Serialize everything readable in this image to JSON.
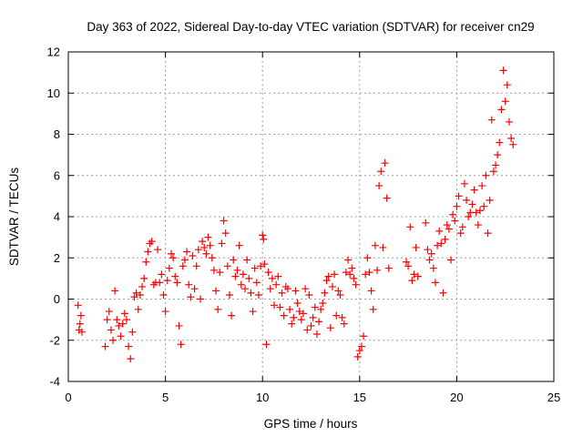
{
  "chart_data": {
    "type": "scatter",
    "title": "Day 363 of 2022, Sidereal Day-to-day VTEC variation (SDTVAR) for receiver cn29",
    "xlabel": "GPS time / hours",
    "ylabel": "SDTVAR / TECUs",
    "xlim": [
      0,
      25
    ],
    "ylim": [
      -4,
      12
    ],
    "xticks": [
      0,
      5,
      10,
      15,
      20,
      25
    ],
    "yticks": [
      -4,
      -2,
      0,
      2,
      4,
      6,
      8,
      10,
      12
    ],
    "grid": true,
    "marker": "+",
    "color": "#ff0000",
    "series": [
      {
        "name": "SDTVAR",
        "x": [
          0.5,
          0.55,
          0.6,
          0.65,
          0.7,
          1.9,
          2.0,
          2.1,
          2.2,
          2.3,
          2.4,
          2.5,
          2.6,
          2.7,
          2.8,
          2.9,
          3.0,
          3.1,
          3.2,
          3.3,
          3.4,
          3.5,
          3.6,
          3.7,
          3.8,
          3.9,
          4.0,
          4.1,
          4.2,
          4.3,
          4.4,
          4.5,
          4.6,
          4.7,
          4.8,
          4.9,
          5.0,
          5.1,
          5.2,
          5.3,
          5.4,
          5.5,
          5.6,
          5.7,
          5.8,
          5.9,
          6.0,
          6.1,
          6.2,
          6.3,
          6.4,
          6.5,
          6.6,
          6.7,
          6.8,
          6.9,
          7.0,
          7.1,
          7.2,
          7.3,
          7.4,
          7.5,
          7.6,
          7.7,
          7.8,
          7.9,
          8.0,
          8.1,
          8.2,
          8.3,
          8.4,
          8.5,
          8.6,
          8.7,
          8.8,
          8.9,
          9.0,
          9.1,
          9.2,
          9.3,
          9.4,
          9.5,
          9.6,
          9.7,
          9.8,
          9.9,
          10.0,
          10.05,
          10.1,
          10.2,
          10.3,
          10.4,
          10.5,
          10.6,
          10.7,
          10.8,
          10.9,
          11.0,
          11.1,
          11.2,
          11.3,
          11.4,
          11.5,
          11.6,
          11.7,
          11.8,
          11.9,
          12.0,
          12.1,
          12.2,
          12.3,
          12.4,
          12.5,
          12.6,
          12.7,
          12.8,
          12.9,
          13.0,
          13.1,
          13.2,
          13.3,
          13.4,
          13.5,
          13.6,
          13.7,
          13.8,
          13.9,
          14.0,
          14.1,
          14.2,
          14.3,
          14.4,
          14.5,
          14.6,
          14.7,
          14.8,
          14.9,
          15.0,
          15.1,
          15.2,
          15.3,
          15.4,
          15.5,
          15.6,
          15.7,
          15.8,
          15.9,
          16.0,
          16.1,
          16.2,
          16.3,
          16.4,
          16.5,
          17.4,
          17.5,
          17.6,
          17.7,
          17.8,
          17.9,
          18.0,
          18.4,
          18.5,
          18.6,
          18.7,
          18.8,
          18.9,
          19.0,
          19.1,
          19.2,
          19.3,
          19.4,
          19.5,
          19.6,
          19.7,
          19.8,
          19.9,
          20.0,
          20.1,
          20.2,
          20.3,
          20.4,
          20.5,
          20.6,
          20.7,
          20.8,
          20.9,
          21.0,
          21.1,
          21.2,
          21.3,
          21.4,
          21.5,
          21.6,
          21.7,
          21.8,
          21.9,
          22.0,
          22.1,
          22.2,
          22.3,
          22.4,
          22.5,
          22.6,
          22.7,
          22.8,
          22.9
        ],
        "y": [
          -0.3,
          -1.5,
          -1.2,
          -0.8,
          -1.6,
          -2.3,
          -1.0,
          -0.6,
          -1.5,
          -2.0,
          0.4,
          -1.0,
          -1.3,
          -1.8,
          -1.2,
          -0.7,
          -1.0,
          -2.3,
          -2.9,
          -1.6,
          0.1,
          0.3,
          -0.5,
          0.2,
          0.6,
          1.0,
          1.8,
          2.3,
          2.7,
          2.8,
          0.7,
          0.8,
          2.4,
          0.8,
          1.2,
          0.2,
          -0.6,
          0.9,
          1.5,
          2.2,
          2.0,
          1.1,
          0.8,
          -1.3,
          -2.2,
          1.6,
          1.9,
          2.3,
          0.7,
          0.1,
          2.1,
          0.5,
          1.6,
          2.4,
          0.0,
          2.8,
          2.5,
          2.2,
          3.0,
          2.6,
          2.0,
          1.4,
          0.4,
          -0.5,
          1.3,
          2.7,
          3.8,
          3.2,
          1.6,
          0.2,
          -0.8,
          1.9,
          1.1,
          1.4,
          2.6,
          0.7,
          1.2,
          0.5,
          1.9,
          1.0,
          0.3,
          -0.6,
          1.5,
          0.8,
          0.2,
          1.6,
          3.1,
          2.9,
          1.7,
          -2.2,
          1.3,
          0.5,
          1.0,
          -0.3,
          0.7,
          1.1,
          -0.4,
          0.3,
          -0.8,
          0.6,
          0.5,
          -0.5,
          -1.2,
          -0.9,
          0.4,
          -0.2,
          -0.6,
          -1.0,
          -0.7,
          0.5,
          -1.5,
          0.2,
          -1.3,
          -0.9,
          -0.4,
          -1.7,
          -1.1,
          -0.5,
          -0.2,
          0.3,
          0.9,
          1.1,
          -1.4,
          0.6,
          1.2,
          -0.8,
          0.4,
          0.2,
          -0.9,
          -1.2,
          1.3,
          1.9,
          1.2,
          1.5,
          1.0,
          0.7,
          -2.8,
          -2.5,
          -2.3,
          -1.8,
          1.2,
          2.0,
          1.3,
          0.4,
          -0.5,
          2.6,
          1.4,
          5.5,
          6.2,
          2.5,
          6.6,
          4.9,
          1.5,
          1.8,
          1.6,
          3.5,
          0.9,
          1.2,
          2.5,
          1.1,
          3.7,
          2.4,
          1.9,
          2.2,
          1.5,
          0.8,
          2.6,
          3.3,
          2.7,
          0.3,
          2.9,
          3.6,
          3.4,
          1.9,
          4.1,
          3.8,
          4.5,
          5.0,
          3.2,
          3.5,
          5.6,
          4.8,
          4.0,
          4.2,
          4.6,
          5.3,
          4.2,
          3.6,
          4.3,
          5.5,
          4.5,
          6.0,
          3.2,
          4.8,
          8.7,
          6.2,
          6.5,
          7.0,
          7.6,
          9.2,
          11.1,
          9.6,
          10.4,
          8.6,
          7.8,
          7.5
        ]
      }
    ]
  }
}
